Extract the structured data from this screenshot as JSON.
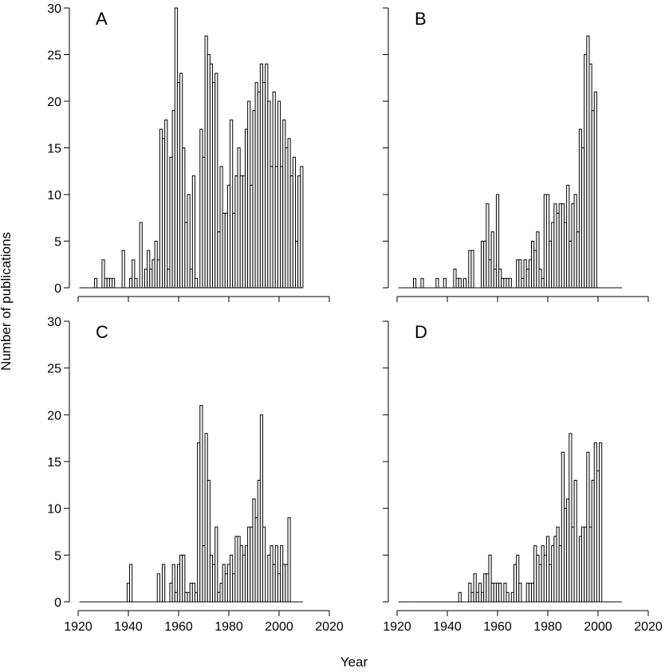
{
  "chart_data": {
    "type": "bar",
    "xlabel": "Year",
    "ylabel": "Number of publications",
    "xlim": [
      1920,
      2020
    ],
    "ylim": [
      0,
      30
    ],
    "x_ticks": [
      1920,
      1940,
      1960,
      1980,
      2000,
      2020
    ],
    "y_ticks": [
      0,
      5,
      10,
      15,
      20,
      25,
      30
    ],
    "start_year": 1921,
    "panels": [
      {
        "label": "A",
        "values": [
          0,
          0,
          0,
          0,
          0,
          0,
          1,
          0,
          0,
          3,
          1,
          1,
          1,
          1,
          0,
          0,
          0,
          4,
          0,
          0,
          1,
          3,
          1,
          0,
          7,
          0,
          2,
          4,
          2,
          3,
          5,
          3,
          17,
          16,
          18,
          2,
          14,
          19,
          30,
          22,
          23,
          15,
          7,
          10,
          2,
          12,
          1,
          0,
          17,
          14,
          27,
          25,
          24,
          22,
          23,
          6,
          13,
          8,
          8,
          11,
          18,
          8,
          12,
          15,
          12,
          12,
          17,
          20,
          11,
          19,
          22,
          21,
          24,
          22,
          24,
          20,
          13,
          21,
          13,
          20,
          13,
          18,
          15,
          16,
          12,
          14,
          5,
          12,
          13
        ]
      },
      {
        "label": "B",
        "values": [
          0,
          0,
          0,
          0,
          0,
          0,
          1,
          0,
          0,
          1,
          0,
          0,
          0,
          0,
          0,
          1,
          0,
          0,
          1,
          0,
          0,
          0,
          2,
          1,
          1,
          0,
          1,
          0,
          4,
          4,
          0,
          0,
          0,
          5,
          5,
          9,
          3,
          6,
          2,
          10,
          2,
          1,
          1,
          1,
          1,
          0,
          0,
          3,
          3,
          1,
          3,
          2,
          3,
          5,
          4,
          6,
          2,
          1,
          10,
          10,
          5,
          7,
          9,
          8,
          9,
          9,
          7,
          11,
          5,
          9,
          10,
          6,
          17,
          15,
          25,
          27,
          24,
          19,
          21,
          0,
          0,
          0,
          0,
          0,
          0,
          0,
          0,
          0,
          0
        ]
      },
      {
        "label": "C",
        "values": [
          0,
          0,
          0,
          0,
          0,
          0,
          0,
          0,
          0,
          0,
          0,
          0,
          0,
          0,
          0,
          0,
          0,
          0,
          0,
          2,
          4,
          0,
          0,
          0,
          0,
          0,
          0,
          0,
          0,
          0,
          0,
          3,
          0,
          4,
          0,
          0,
          2,
          4,
          1,
          4,
          5,
          5,
          1,
          1,
          2,
          2,
          1,
          17,
          21,
          6,
          18,
          13,
          5,
          4,
          8,
          1,
          2,
          4,
          3,
          4,
          5,
          3,
          7,
          7,
          6,
          5,
          6,
          8,
          8,
          11,
          9,
          13,
          20,
          8,
          0,
          5,
          6,
          4,
          6,
          3,
          6,
          4,
          4,
          9,
          0,
          0,
          0,
          0,
          0
        ]
      },
      {
        "label": "D",
        "values": [
          0,
          0,
          0,
          0,
          0,
          0,
          0,
          0,
          0,
          0,
          0,
          0,
          0,
          0,
          0,
          0,
          0,
          0,
          0,
          0,
          0,
          0,
          0,
          0,
          1,
          0,
          0,
          0,
          2,
          1,
          3,
          1,
          2,
          1,
          3,
          3,
          5,
          2,
          2,
          2,
          2,
          0,
          2,
          1,
          0,
          1,
          4,
          5,
          2,
          0,
          0,
          2,
          2,
          2,
          6,
          5,
          4,
          6,
          5,
          7,
          4,
          6,
          7,
          8,
          6,
          16,
          10,
          11,
          18,
          8,
          13,
          0,
          7,
          8,
          8,
          16,
          8,
          13,
          17,
          14,
          17,
          0,
          0,
          0,
          0,
          0,
          0,
          0,
          0
        ]
      }
    ]
  }
}
